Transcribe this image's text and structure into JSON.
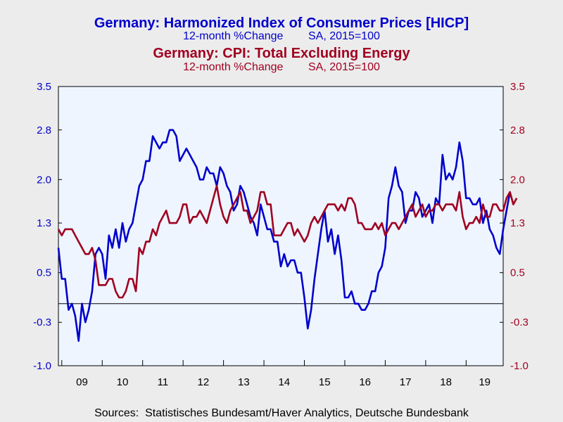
{
  "chart_data": {
    "type": "line",
    "titles": [
      {
        "title": "Germany: Harmonized Index of Consumer Prices [HICP]",
        "subtitle": "12-month %Change        SA, 2015=100",
        "color": "#0000cc"
      },
      {
        "title": "Germany: CPI: Total Excluding Energy",
        "subtitle": "12-month %Change        SA, 2015=100",
        "color": "#a00020"
      }
    ],
    "source": "Sources:  Statistisches Bundesamt/Haver Analytics, Deutsche Bundesbank",
    "y_left": {
      "ticks": [
        "3.5",
        "2.8",
        "2.0",
        "1.3",
        "0.5",
        "-0.3",
        "-1.0"
      ],
      "ylim": [
        -1.0,
        3.5
      ],
      "color": "#0000cc"
    },
    "y_right": {
      "ticks": [
        "3.5",
        "2.8",
        "2.0",
        "1.3",
        "0.5",
        "-0.3",
        "-1.0"
      ],
      "ylim": [
        -1.0,
        3.5
      ],
      "color": "#a00020"
    },
    "x_categories": [
      "09",
      "10",
      "11",
      "12",
      "13",
      "14",
      "15",
      "16",
      "17",
      "18",
      "19"
    ],
    "x_range": [
      "2008-12",
      "2019-12"
    ],
    "zero_line": 0,
    "grid": false,
    "series": [
      {
        "name": "Germany: Harmonized Index of Consumer Prices [HICP]",
        "color": "#0000cc",
        "start": "2008-12",
        "values": [
          0.9,
          0.4,
          0.4,
          -0.1,
          0.0,
          -0.2,
          -0.6,
          0.0,
          -0.3,
          -0.1,
          0.2,
          0.8,
          0.9,
          0.8,
          0.4,
          1.1,
          0.9,
          1.2,
          0.9,
          1.3,
          1.0,
          1.2,
          1.3,
          1.6,
          1.9,
          2.0,
          2.3,
          2.3,
          2.7,
          2.6,
          2.5,
          2.6,
          2.6,
          2.8,
          2.8,
          2.7,
          2.3,
          2.4,
          2.5,
          2.4,
          2.3,
          2.2,
          2.0,
          2.0,
          2.2,
          2.1,
          2.1,
          1.9,
          2.2,
          2.1,
          1.9,
          1.8,
          1.5,
          1.6,
          1.9,
          1.8,
          1.6,
          1.4,
          1.3,
          1.1,
          1.6,
          1.4,
          1.2,
          1.2,
          1.0,
          1.0,
          0.6,
          0.8,
          0.6,
          0.7,
          0.7,
          0.5,
          0.5,
          0.1,
          -0.4,
          -0.1,
          0.4,
          0.8,
          1.2,
          1.5,
          1.0,
          1.2,
          0.8,
          1.1,
          0.7,
          0.1,
          0.1,
          0.2,
          0.0,
          0.0,
          -0.1,
          -0.1,
          0.0,
          0.2,
          0.2,
          0.5,
          0.6,
          0.9,
          1.7,
          1.9,
          2.2,
          1.9,
          1.8,
          1.3,
          1.5,
          1.5,
          1.8,
          1.7,
          1.4,
          1.5,
          1.6,
          1.3,
          1.7,
          1.6,
          2.4,
          2.0,
          2.1,
          2.0,
          2.2,
          2.6,
          2.3,
          1.7,
          1.7,
          1.6,
          1.6,
          1.7,
          1.3,
          1.5,
          1.2,
          1.1,
          0.9,
          0.8,
          1.2,
          1.5,
          1.8
        ]
      },
      {
        "name": "Germany: CPI: Total Excluding Energy",
        "color": "#a00020",
        "start": "2008-12",
        "values": [
          1.2,
          1.1,
          1.2,
          1.2,
          1.2,
          1.1,
          1.0,
          0.9,
          0.8,
          0.8,
          0.9,
          0.7,
          0.3,
          0.3,
          0.3,
          0.4,
          0.4,
          0.2,
          0.1,
          0.1,
          0.2,
          0.4,
          0.4,
          0.2,
          0.9,
          0.8,
          1.0,
          1.0,
          1.2,
          1.1,
          1.3,
          1.4,
          1.5,
          1.3,
          1.3,
          1.3,
          1.4,
          1.6,
          1.6,
          1.3,
          1.4,
          1.4,
          1.5,
          1.4,
          1.3,
          1.5,
          1.7,
          1.9,
          1.6,
          1.4,
          1.3,
          1.5,
          1.6,
          1.7,
          1.8,
          1.5,
          1.5,
          1.3,
          1.4,
          1.5,
          1.8,
          1.8,
          1.6,
          1.6,
          1.1,
          1.1,
          1.1,
          1.2,
          1.3,
          1.3,
          1.1,
          1.2,
          1.1,
          1.0,
          1.1,
          1.3,
          1.4,
          1.3,
          1.4,
          1.5,
          1.6,
          1.6,
          1.6,
          1.5,
          1.6,
          1.5,
          1.7,
          1.7,
          1.6,
          1.3,
          1.3,
          1.2,
          1.2,
          1.2,
          1.3,
          1.2,
          1.3,
          1.1,
          1.2,
          1.3,
          1.3,
          1.2,
          1.3,
          1.4,
          1.5,
          1.6,
          1.4,
          1.5,
          1.6,
          1.4,
          1.5,
          1.5,
          1.6,
          1.6,
          1.5,
          1.6,
          1.6,
          1.6,
          1.5,
          1.8,
          1.4,
          1.2,
          1.3,
          1.3,
          1.4,
          1.3,
          1.6,
          1.4,
          1.4,
          1.6,
          1.6,
          1.5,
          1.5,
          1.7,
          1.8,
          1.6,
          1.7
        ]
      }
    ]
  }
}
